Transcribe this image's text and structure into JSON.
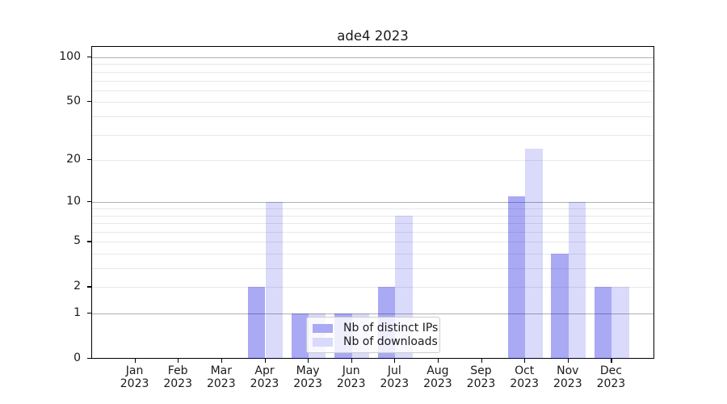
{
  "title": "ade4 2023",
  "chart_data": {
    "type": "bar",
    "title": "ade4 2023",
    "scale": "log1p",
    "months": [
      "Jan",
      "Feb",
      "Mar",
      "Apr",
      "May",
      "Jun",
      "Jul",
      "Aug",
      "Sep",
      "Oct",
      "Nov",
      "Dec"
    ],
    "year": "2023",
    "categories": [
      "Jan 2023",
      "Feb 2023",
      "Mar 2023",
      "Apr 2023",
      "May 2023",
      "Jun 2023",
      "Jul 2023",
      "Aug 2023",
      "Sep 2023",
      "Oct 2023",
      "Nov 2023",
      "Dec 2023"
    ],
    "series": [
      {
        "name": "Nb of distinct IPs",
        "color": "#a9a9f4",
        "values": [
          0,
          0,
          0,
          2,
          1,
          1,
          2,
          0,
          0,
          11,
          4,
          2
        ]
      },
      {
        "name": "Nb of downloads",
        "color": "#d9d9fb",
        "values": [
          0,
          0,
          0,
          10,
          1,
          1,
          8,
          0,
          0,
          24,
          10,
          2
        ]
      }
    ],
    "yticks": [
      0,
      1,
      2,
      5,
      10,
      20,
      50,
      100
    ],
    "ytick_labels": [
      "0",
      "1",
      "2",
      "5",
      "10",
      "20",
      "50",
      "100"
    ],
    "major_gridlines": [
      1,
      10,
      100
    ],
    "minor_gridlines": [
      2,
      3,
      4,
      5,
      6,
      7,
      8,
      9,
      20,
      30,
      40,
      50,
      60,
      70,
      80,
      90
    ],
    "ylim": [
      0,
      112
    ],
    "xlabel": "",
    "ylabel": "",
    "grid": true,
    "legend_position": "lower center"
  },
  "colors": {
    "bar_ips_rgba": "rgba(9,9,224,0.35)",
    "bar_downloads_rgba": "rgba(9,9,224,0.15)",
    "swatch_ips": "#a9a9f4",
    "swatch_downloads": "#d9d9fb",
    "major_grid": "#b0b0b0",
    "minor_grid": "#e8e8e8",
    "axis": "#000000",
    "legend_border": "#cccccc"
  }
}
